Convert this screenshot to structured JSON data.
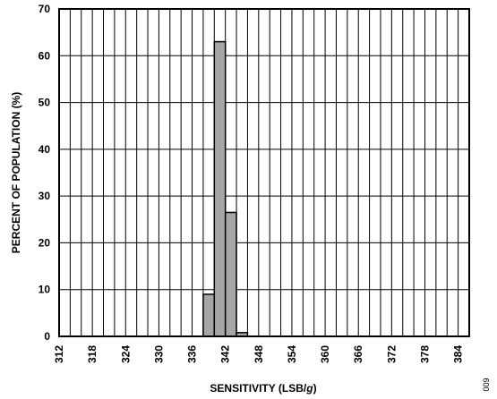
{
  "chart_data": {
    "type": "bar",
    "xlabel": "SENSITIVITY (LSB/g)",
    "xlabel_parts": {
      "before": "SENSITIVITY (LSB/",
      "italic": "g",
      "after": ")"
    },
    "ylabel": "PERCENT OF POPULATION (%)",
    "ylim": [
      0,
      70
    ],
    "xlim": [
      312,
      386
    ],
    "x_tick_labels": [
      "312",
      "318",
      "324",
      "330",
      "336",
      "342",
      "348",
      "354",
      "360",
      "366",
      "372",
      "378",
      "384"
    ],
    "y_tick_labels": [
      "0",
      "10",
      "20",
      "30",
      "40",
      "50",
      "60",
      "70"
    ],
    "grid": true,
    "bin_width": 2,
    "bins": [
      {
        "start": 338,
        "value": 9
      },
      {
        "start": 340,
        "value": 63
      },
      {
        "start": 342,
        "value": 26.5
      },
      {
        "start": 344,
        "value": 0.8
      }
    ],
    "bar_color": "#a6a6a6"
  },
  "side_note": "009"
}
